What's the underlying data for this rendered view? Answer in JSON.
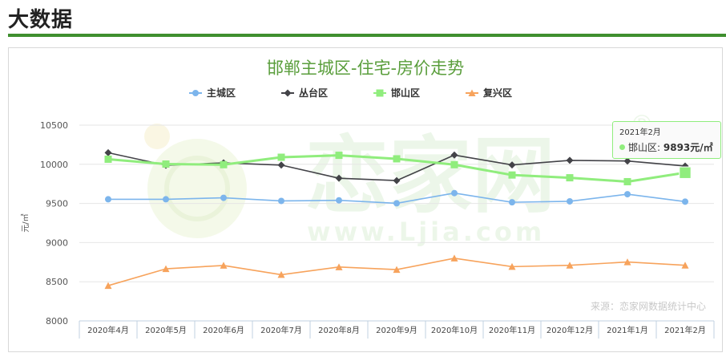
{
  "header": {
    "title": "大数据"
  },
  "watermark": {
    "logo": "恋家网",
    "url": "www.Ljia.com",
    "registered": "®"
  },
  "source": "来源：恋家网数据统计中心",
  "tooltip": {
    "date": "2021年2月",
    "series": "邯山区",
    "value": "9893元/㎡"
  },
  "colors": {
    "accent": "#3f8f2f",
    "title": "#5a9e3c"
  },
  "chart_data": {
    "type": "line",
    "title": "邯郸主城区-住宅-房价走势",
    "ylabel": "元/㎡",
    "ylim": [
      8000,
      10500
    ],
    "yticks": [
      8000,
      8500,
      9000,
      9500,
      10000,
      10500
    ],
    "grid": true,
    "legend_position": "top",
    "categories": [
      "2020年4月",
      "2020年5月",
      "2020年6月",
      "2020年7月",
      "2020年8月",
      "2020年9月",
      "2020年10月",
      "2020年11月",
      "2020年12月",
      "2021年1月",
      "2021年2月"
    ],
    "series": [
      {
        "name": "主城区",
        "color": "#7cb5ec",
        "marker": "circle",
        "values": [
          9553,
          9553,
          9572,
          9532,
          9540,
          9502,
          9632,
          9515,
          9527,
          9618,
          9523
        ]
      },
      {
        "name": "丛台区",
        "color": "#434348",
        "marker": "diamond",
        "values": [
          10148,
          9988,
          10018,
          9990,
          9822,
          9792,
          10118,
          9992,
          10050,
          10042,
          9978
        ]
      },
      {
        "name": "邯山区",
        "color": "#90ed7d",
        "marker": "square",
        "values": [
          10065,
          10003,
          9995,
          10090,
          10115,
          10070,
          9995,
          9863,
          9828,
          9778,
          9893
        ]
      },
      {
        "name": "复兴区",
        "color": "#f7a35c",
        "marker": "triangle",
        "values": [
          8450,
          8665,
          8708,
          8590,
          8688,
          8655,
          8800,
          8693,
          8710,
          8752,
          8710
        ]
      }
    ]
  }
}
